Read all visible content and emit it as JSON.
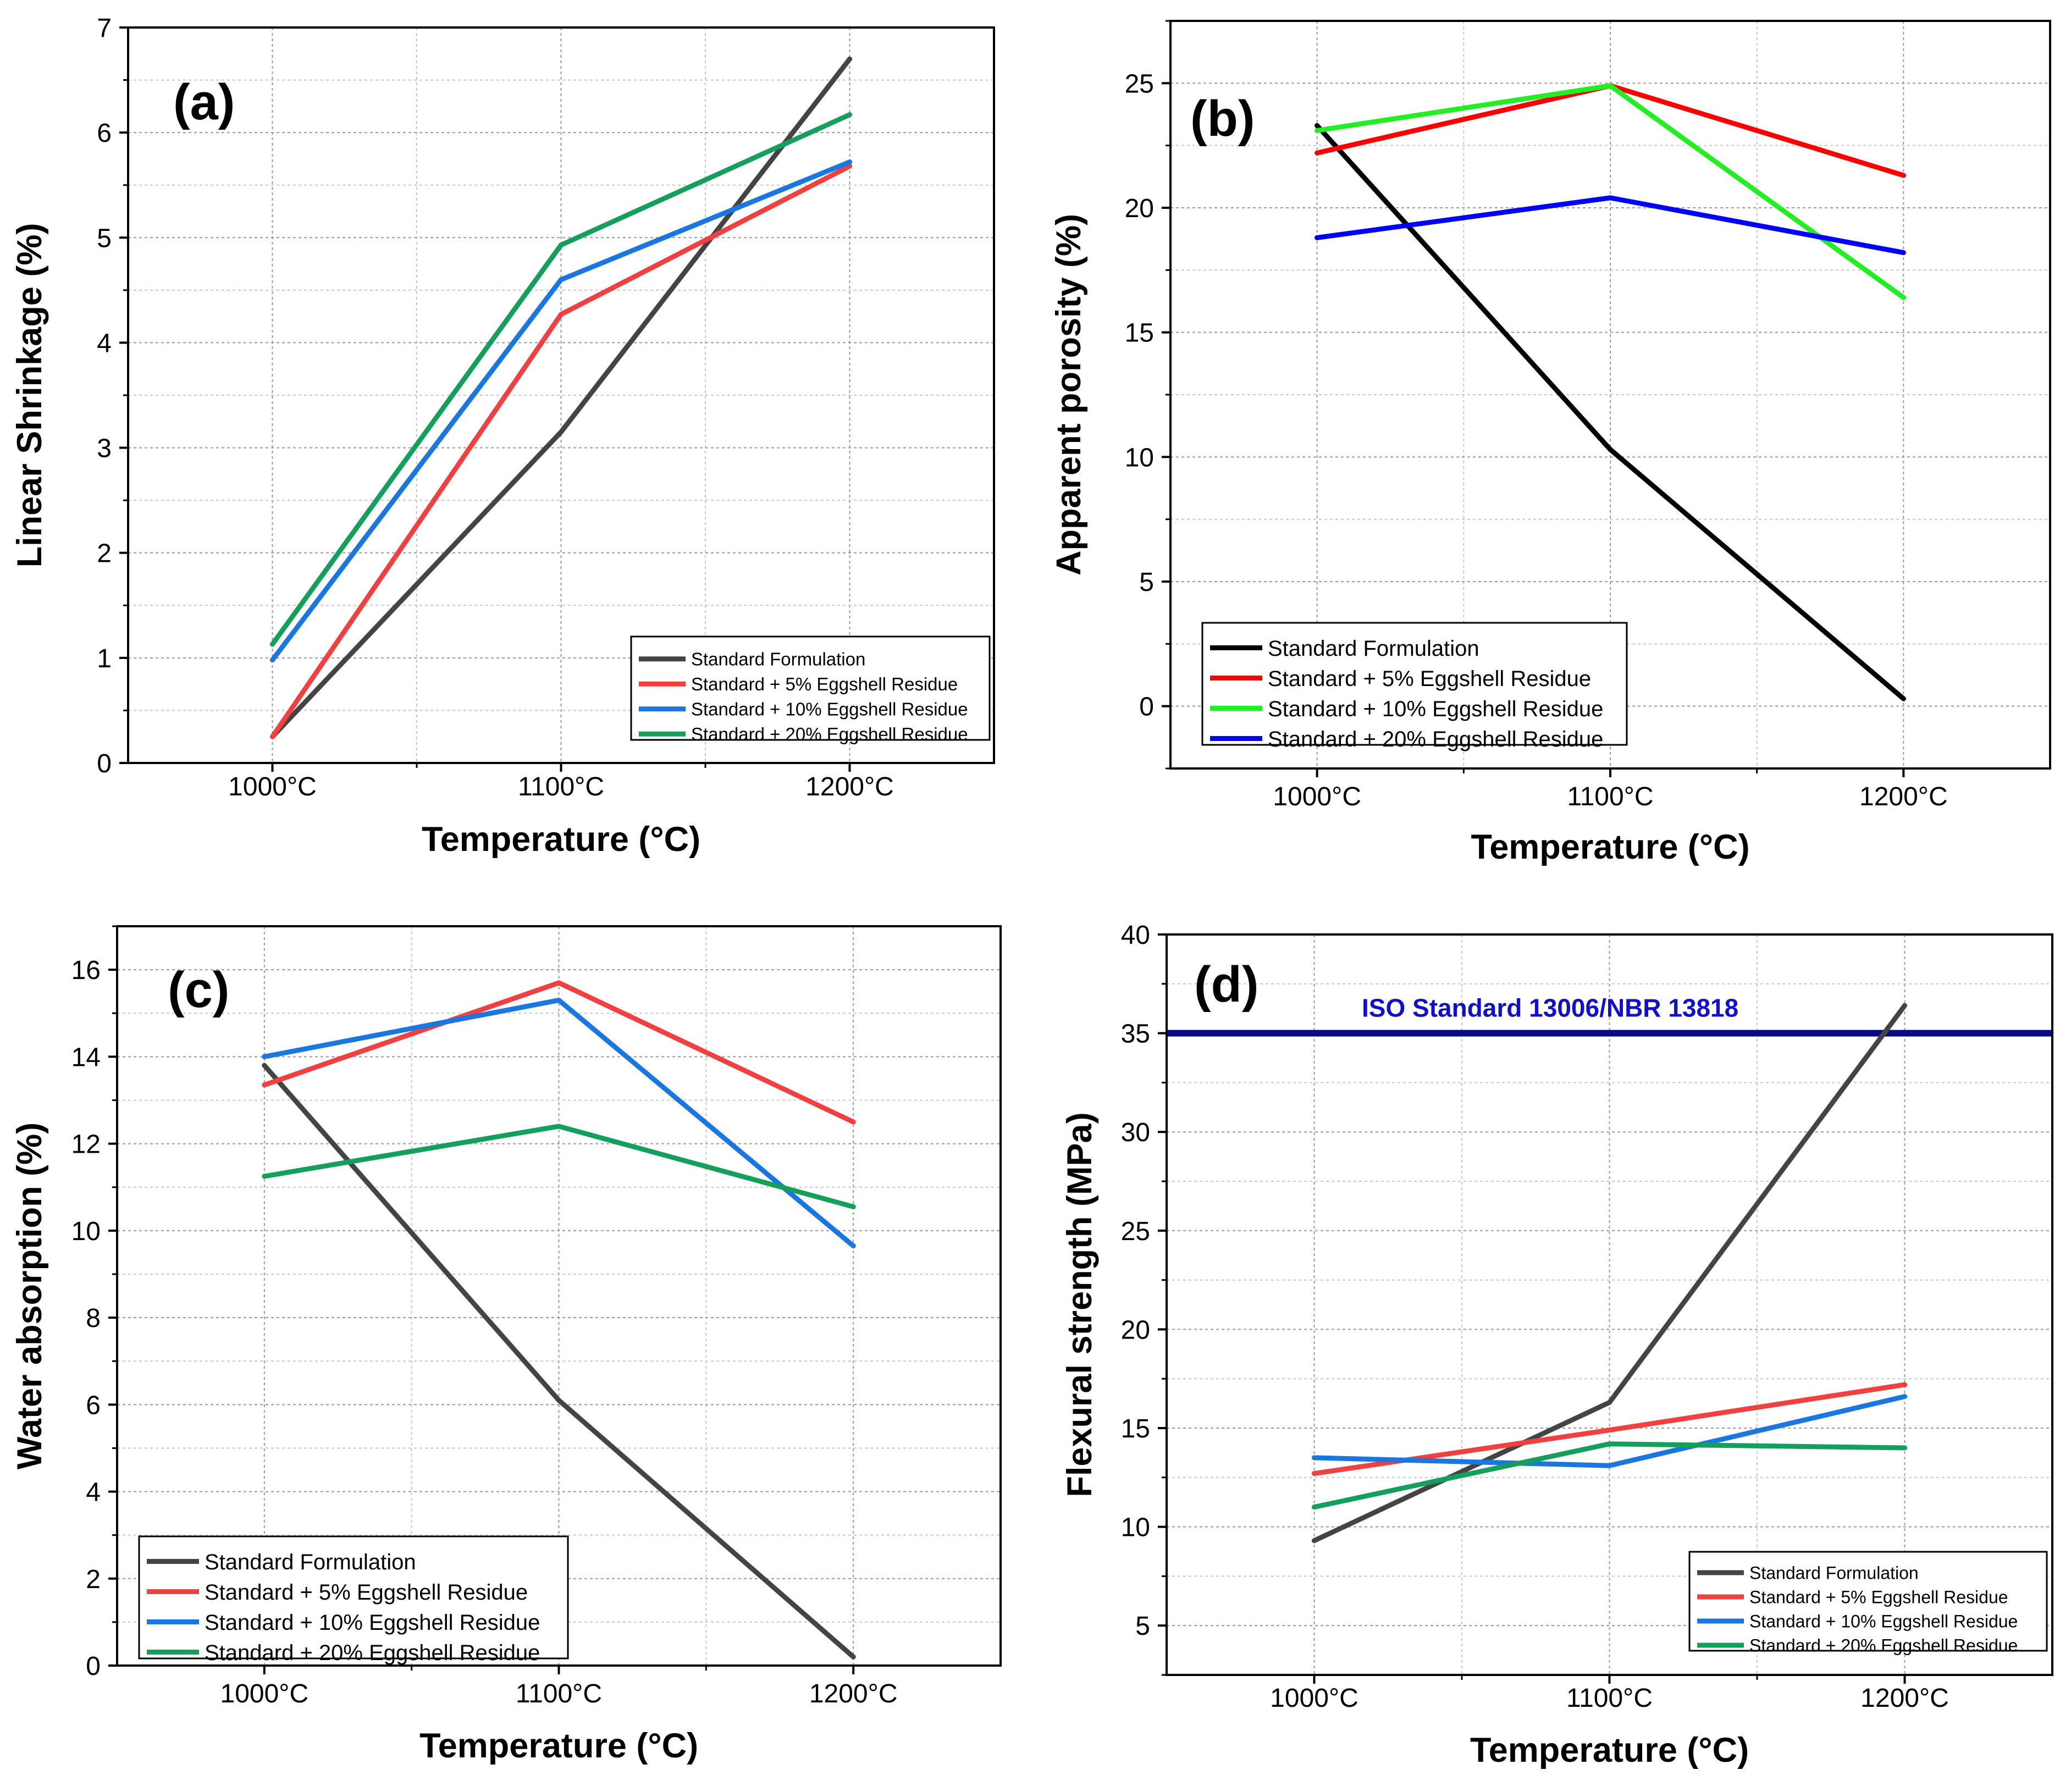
{
  "chart_data": [
    {
      "id": "a",
      "type": "line",
      "panel_label": "(a)",
      "xlabel": "Temperature (°C)",
      "ylabel": "Linear Shrinkage (%)",
      "categories": [
        "1000°C",
        "1100°C",
        "1200°C"
      ],
      "ylim": [
        0,
        7
      ],
      "yticks": [
        0,
        1,
        2,
        3,
        4,
        5,
        6,
        7
      ],
      "grid": true,
      "legend_position": "bottom-right",
      "series": [
        {
          "name": "Standard Formulation",
          "color": "#444444",
          "values": [
            0.25,
            3.15,
            6.7
          ]
        },
        {
          "name": "Standard + 5% Eggshell Residue",
          "color": "#f04040",
          "values": [
            0.25,
            4.27,
            5.68
          ]
        },
        {
          "name": "Standard + 10% Eggshell Residue",
          "color": "#1a77e0",
          "values": [
            0.98,
            4.6,
            5.72
          ]
        },
        {
          "name": "Standard + 20% Eggshell Residue",
          "color": "#14a05a",
          "values": [
            1.13,
            4.93,
            6.17
          ]
        }
      ]
    },
    {
      "id": "b",
      "type": "line",
      "panel_label": "(b)",
      "xlabel": "Temperature (°C)",
      "ylabel": "Apparent porosity (%)",
      "categories": [
        "1000°C",
        "1100°C",
        "1200°C"
      ],
      "ylim": [
        -2.5,
        27.5
      ],
      "yticks": [
        0,
        5,
        10,
        15,
        20,
        25
      ],
      "grid": true,
      "legend_position": "bottom-left",
      "series": [
        {
          "name": "Standard Formulation",
          "color": "#000000",
          "values": [
            23.3,
            10.3,
            0.3
          ]
        },
        {
          "name": "Standard + 5% Eggshell Residue",
          "color": "#ff0000",
          "values": [
            22.2,
            24.9,
            21.3
          ]
        },
        {
          "name": "Standard + 10% Eggshell Residue",
          "color": "#22ee22",
          "values": [
            23.1,
            24.9,
            16.4
          ]
        },
        {
          "name": "Standard + 20% Eggshell Residue",
          "color": "#0000ff",
          "values": [
            18.8,
            20.4,
            18.2
          ]
        }
      ]
    },
    {
      "id": "c",
      "type": "line",
      "panel_label": "(c)",
      "xlabel": "Temperature (°C)",
      "ylabel": "Water absorption (%)",
      "categories": [
        "1000°C",
        "1100°C",
        "1200°C"
      ],
      "ylim": [
        0,
        17
      ],
      "yticks": [
        0,
        2,
        4,
        6,
        8,
        10,
        12,
        14,
        16
      ],
      "grid": true,
      "legend_position": "bottom-left",
      "series": [
        {
          "name": "Standard Formulation",
          "color": "#444444",
          "values": [
            13.8,
            6.1,
            0.2
          ]
        },
        {
          "name": "Standard + 5% Eggshell Residue",
          "color": "#f04040",
          "values": [
            13.35,
            15.7,
            12.5
          ]
        },
        {
          "name": "Standard + 10% Eggshell Residue",
          "color": "#1a77e0",
          "values": [
            14.0,
            15.3,
            9.65
          ]
        },
        {
          "name": "Standard + 20% Eggshell Residue",
          "color": "#14a05a",
          "values": [
            11.25,
            12.4,
            10.55
          ]
        }
      ]
    },
    {
      "id": "d",
      "type": "line",
      "panel_label": "(d)",
      "xlabel": "Temperature (°C)",
      "ylabel": "Flexural strength (MPa)",
      "categories": [
        "1000°C",
        "1100°C",
        "1200°C"
      ],
      "ylim": [
        2.5,
        40
      ],
      "yticks": [
        5,
        10,
        15,
        20,
        25,
        30,
        35,
        40
      ],
      "grid": true,
      "legend_position": "bottom-right",
      "reference_line": {
        "value": 35,
        "label": "ISO Standard 13006/NBR 13818",
        "color": "#0a0a80",
        "label_color": "#1010cc"
      },
      "series": [
        {
          "name": "Standard Formulation",
          "color": "#444444",
          "values": [
            9.3,
            16.3,
            36.4
          ]
        },
        {
          "name": "Standard + 5% Eggshell Residue",
          "color": "#f04040",
          "values": [
            12.7,
            14.9,
            17.2
          ]
        },
        {
          "name": "Standard + 10% Eggshell Residue",
          "color": "#1a77e0",
          "values": [
            13.5,
            13.1,
            16.6
          ]
        },
        {
          "name": "Standard + 20% Eggshell Residue",
          "color": "#14a05a",
          "values": [
            11.0,
            14.2,
            14.0
          ]
        }
      ]
    }
  ]
}
